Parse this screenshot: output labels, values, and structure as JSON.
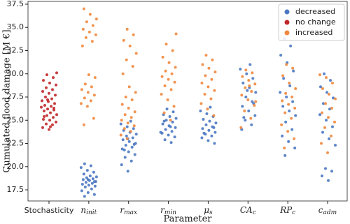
{
  "chart_data": {
    "type": "strip",
    "xlabel": "Parameter",
    "ylabel": "Cumulated flood damage [M €]",
    "categories": [
      "Stochasticity",
      {
        "main": "n",
        "sub": "init"
      },
      {
        "main": "r",
        "sub": "max"
      },
      {
        "main": "r",
        "sub": "min"
      },
      {
        "main": "μ",
        "sub": "s"
      },
      {
        "main": "CA",
        "sub": "c"
      },
      {
        "main": "RP",
        "sub": "c"
      },
      {
        "main": "c",
        "sub": "adm"
      }
    ],
    "ylim": [
      16.3,
      37.8
    ],
    "yticks": [
      17.5,
      {
        "value": 20,
        "label": "20.0"
      },
      22.5,
      {
        "value": 25,
        "label": "25.0"
      },
      27.5,
      {
        "value": 30,
        "label": "30.0"
      },
      32.5,
      {
        "value": 35,
        "label": "35.0"
      },
      37.5
    ],
    "legend": "upper right",
    "series": [
      {
        "name": "decreased",
        "color": "#4a78c2",
        "values": [
          [],
          [
            16.8,
            17.0,
            17.2,
            17.4,
            17.6,
            17.8,
            17.9,
            18.0,
            18.1,
            18.2,
            18.3,
            18.4,
            18.5,
            18.6,
            18.7,
            18.8,
            18.9,
            19.0,
            19.2,
            19.4,
            19.6,
            19.9,
            20.1,
            20.3,
            18.4,
            18.6
          ],
          [
            19.5,
            20.2,
            20.6,
            21.0,
            21.3,
            21.6,
            21.9,
            22.1,
            22.3,
            22.5,
            22.7,
            22.9,
            23.1,
            23.3,
            23.5,
            23.7,
            23.9,
            24.1,
            24.3,
            24.6,
            24.9,
            21.8,
            22.4,
            23.0
          ],
          [
            22.6,
            22.9,
            23.2,
            23.4,
            23.6,
            23.8,
            24.0,
            24.2,
            24.4,
            24.6,
            24.8,
            25.0,
            25.2,
            25.4,
            25.6,
            25.9,
            26.2,
            23.7,
            24.3,
            24.9
          ],
          [
            22.5,
            22.8,
            23.1,
            23.3,
            23.5,
            23.7,
            23.9,
            24.1,
            24.3,
            24.5,
            24.7,
            24.9,
            25.1,
            25.4,
            25.7,
            26.0,
            26.4,
            23.6,
            24.2
          ],
          [
            24.0,
            24.5,
            25.0,
            25.5,
            26.0,
            26.5,
            27.0,
            27.5,
            28.0,
            28.5,
            29.0,
            29.5,
            30.0,
            30.5,
            31.0,
            25.3,
            26.8,
            28.2
          ],
          [
            21.2,
            22.0,
            22.7,
            23.3,
            24.0,
            24.8,
            25.5,
            26.0,
            26.5,
            27.0,
            27.5,
            28.0,
            28.7,
            29.5,
            30.3,
            31.2,
            32.0,
            33.0,
            33.8
          ],
          [
            18.5,
            19.0,
            19.5,
            19.8,
            22.3,
            23.0,
            23.7,
            24.3,
            25.0,
            25.6,
            26.2,
            26.8,
            27.4,
            28.0,
            28.6,
            29.3,
            30.0
          ]
        ]
      },
      {
        "name": "no change",
        "color": "#c0282a",
        "values": [
          [
            24.0,
            24.2,
            24.5,
            24.6,
            24.8,
            25.0,
            25.1,
            25.3,
            25.5,
            25.6,
            25.8,
            26.0,
            26.1,
            26.2,
            26.4,
            26.5,
            26.6,
            26.8,
            27.0,
            27.1,
            27.3,
            27.5,
            27.7,
            27.9,
            28.1,
            28.3,
            28.5,
            28.8,
            29.0,
            29.3,
            29.6,
            29.9,
            30.1,
            24.3,
            25.4,
            26.3,
            27.2
          ],
          [],
          [],
          [],
          [],
          [],
          [],
          []
        ]
      },
      {
        "name": "increased",
        "color": "#f0883e",
        "values": [
          [],
          [
            24.5,
            25.2,
            26.5,
            26.8,
            27.1,
            27.4,
            27.7,
            28.0,
            28.3,
            28.6,
            28.9,
            29.6,
            29.9,
            33.0,
            33.5,
            33.9,
            34.2,
            34.5,
            34.8,
            35.2,
            35.6,
            35.9,
            36.4,
            37.0
          ],
          [
            23.0,
            23.4,
            23.8,
            24.1,
            24.4,
            24.7,
            25.0,
            25.3,
            25.6,
            25.9,
            26.3,
            26.7,
            27.2,
            27.5,
            28.0,
            28.6,
            30.0,
            30.8,
            31.5,
            32.2,
            33.0,
            33.6,
            34.2,
            34.8
          ],
          [
            25.0,
            25.8,
            26.5,
            27.2,
            27.8,
            28.3,
            28.7,
            29.1,
            29.4,
            29.7,
            30.0,
            30.3,
            30.7,
            31.2,
            31.8,
            32.5,
            33.2,
            34.3
          ],
          [
            25.5,
            26.2,
            26.8,
            27.3,
            27.8,
            28.2,
            28.6,
            29.0,
            29.4,
            29.8,
            30.2,
            30.6,
            31.0,
            31.5,
            32.0
          ],
          [
            24.2,
            25.2,
            26.0,
            26.6,
            27.2,
            27.7,
            28.1,
            28.5,
            28.9,
            29.3,
            29.7,
            30.1,
            30.4,
            27.0,
            28.7
          ],
          [
            22.0,
            23.0,
            23.8,
            24.5,
            25.2,
            25.8,
            26.3,
            26.7,
            27.1,
            27.5,
            27.9,
            28.4,
            29.0,
            29.8,
            30.6,
            31.0
          ],
          [
            21.5,
            22.5,
            23.3,
            24.2,
            24.8,
            25.3,
            25.8,
            26.3,
            26.8,
            27.3,
            27.8,
            28.4,
            29.0,
            29.6,
            29.9
          ]
        ]
      }
    ]
  }
}
